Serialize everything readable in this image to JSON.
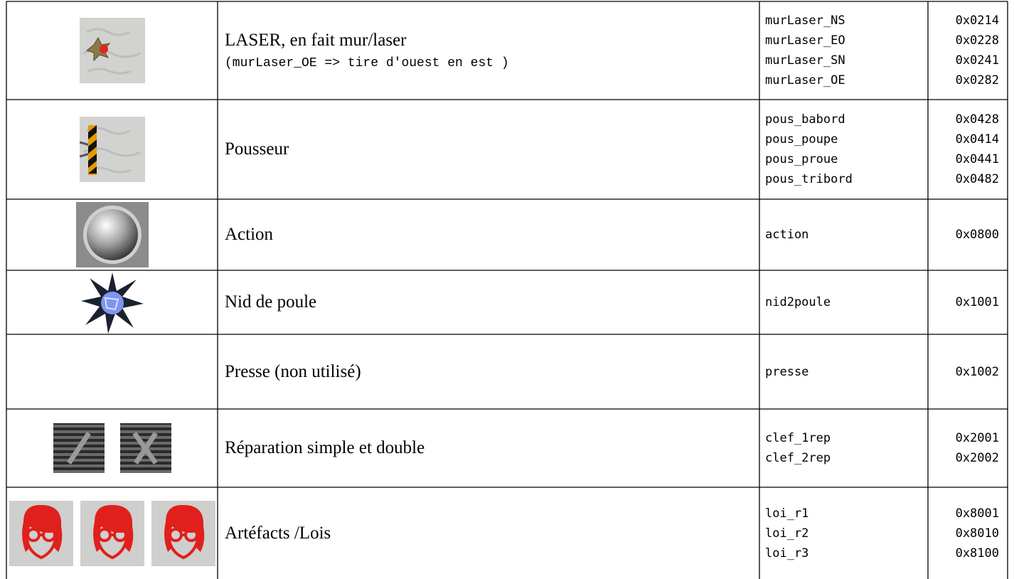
{
  "table": {
    "rows": [
      {
        "description": "LASER, en fait mur/laser",
        "note": "(murLaser_OE => tire d'ouest en est )",
        "names": [
          "murLaser_NS",
          "murLaser_EO",
          "murLaser_SN",
          "murLaser_OE"
        ],
        "codes": [
          "0x0214",
          "0x0228",
          "0x0241",
          "0x0282"
        ]
      },
      {
        "description": "Pousseur",
        "names": [
          "pous_babord",
          "pous_poupe",
          "pous_proue",
          "pous_tribord"
        ],
        "codes": [
          "0x0428",
          "0x0414",
          "0x0441",
          "0x0482"
        ]
      },
      {
        "description": "Action",
        "names": [
          "action"
        ],
        "codes": [
          "0x0800"
        ]
      },
      {
        "description": "Nid de poule",
        "names": [
          "nid2poule"
        ],
        "codes": [
          "0x1001"
        ]
      },
      {
        "description": "Presse (non utilisé)",
        "names": [
          "presse"
        ],
        "codes": [
          "0x1002"
        ]
      },
      {
        "description": "Réparation simple et double",
        "names": [
          "clef_1rep",
          "clef_2rep"
        ],
        "codes": [
          "0x2001",
          "0x2002"
        ]
      },
      {
        "description": "Artéfacts /Lois",
        "names": [
          "loi_r1",
          "loi_r2",
          "loi_r3"
        ],
        "codes": [
          "0x8001",
          "0x8010",
          "0x8100"
        ]
      }
    ]
  }
}
